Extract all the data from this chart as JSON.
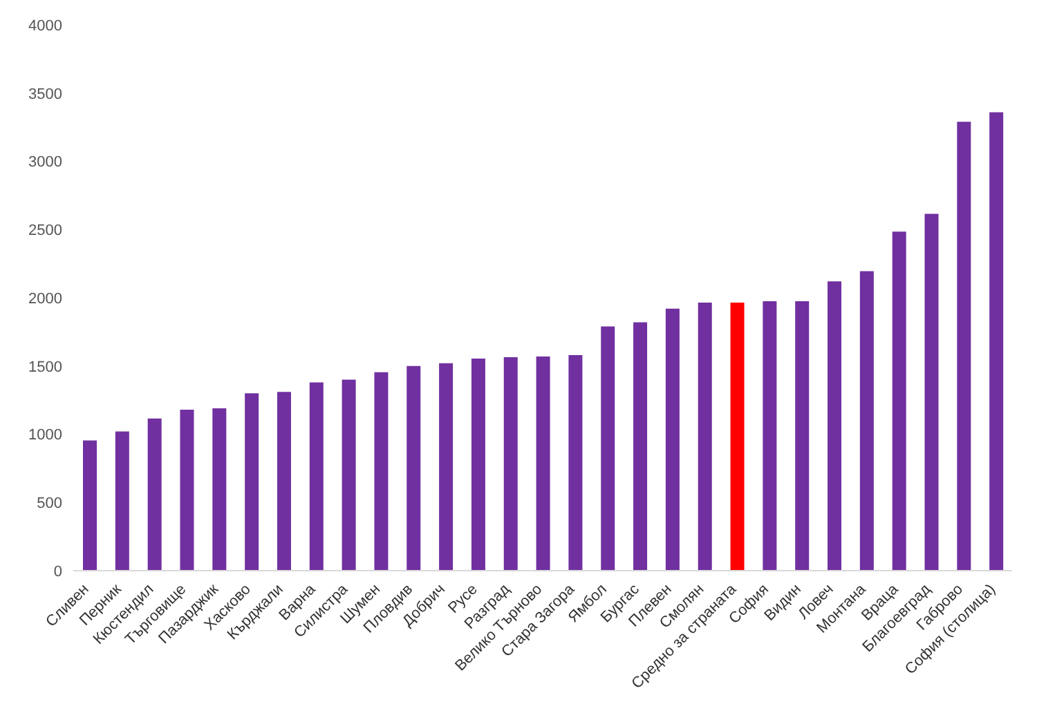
{
  "chart_data": {
    "type": "bar",
    "categories": [
      "Сливен",
      "Перник",
      "Кюстендил",
      "Търговище",
      "Пазарджик",
      "Хасково",
      "Кърджали",
      "Варна",
      "Силистра",
      "Шумен",
      "Пловдив",
      "Добрич",
      "Русе",
      "Разград",
      "Велико Търново",
      "Стара Загора",
      "Ямбол",
      "Бургас",
      "Плевен",
      "Смолян",
      "Средно за страната",
      "София",
      "Видин",
      "Ловеч",
      "Монтана",
      "Враца",
      "Благоевград",
      "Габрово",
      "София (столица)"
    ],
    "values": [
      955,
      1020,
      1115,
      1180,
      1190,
      1300,
      1310,
      1380,
      1400,
      1455,
      1500,
      1520,
      1555,
      1565,
      1570,
      1580,
      1790,
      1820,
      1920,
      1965,
      1965,
      1975,
      1975,
      2120,
      2195,
      2485,
      2615,
      3290,
      3360
    ],
    "colors": [
      "#7030a0",
      "#7030a0",
      "#7030a0",
      "#7030a0",
      "#7030a0",
      "#7030a0",
      "#7030a0",
      "#7030a0",
      "#7030a0",
      "#7030a0",
      "#7030a0",
      "#7030a0",
      "#7030a0",
      "#7030a0",
      "#7030a0",
      "#7030a0",
      "#7030a0",
      "#7030a0",
      "#7030a0",
      "#7030a0",
      "#ff0000",
      "#7030a0",
      "#7030a0",
      "#7030a0",
      "#7030a0",
      "#7030a0",
      "#7030a0",
      "#7030a0",
      "#7030a0"
    ],
    "ylim": [
      0,
      4000
    ],
    "yticks": [
      0,
      500,
      1000,
      1500,
      2000,
      2500,
      3000,
      3500,
      4000
    ],
    "grid": false,
    "legend": false
  }
}
